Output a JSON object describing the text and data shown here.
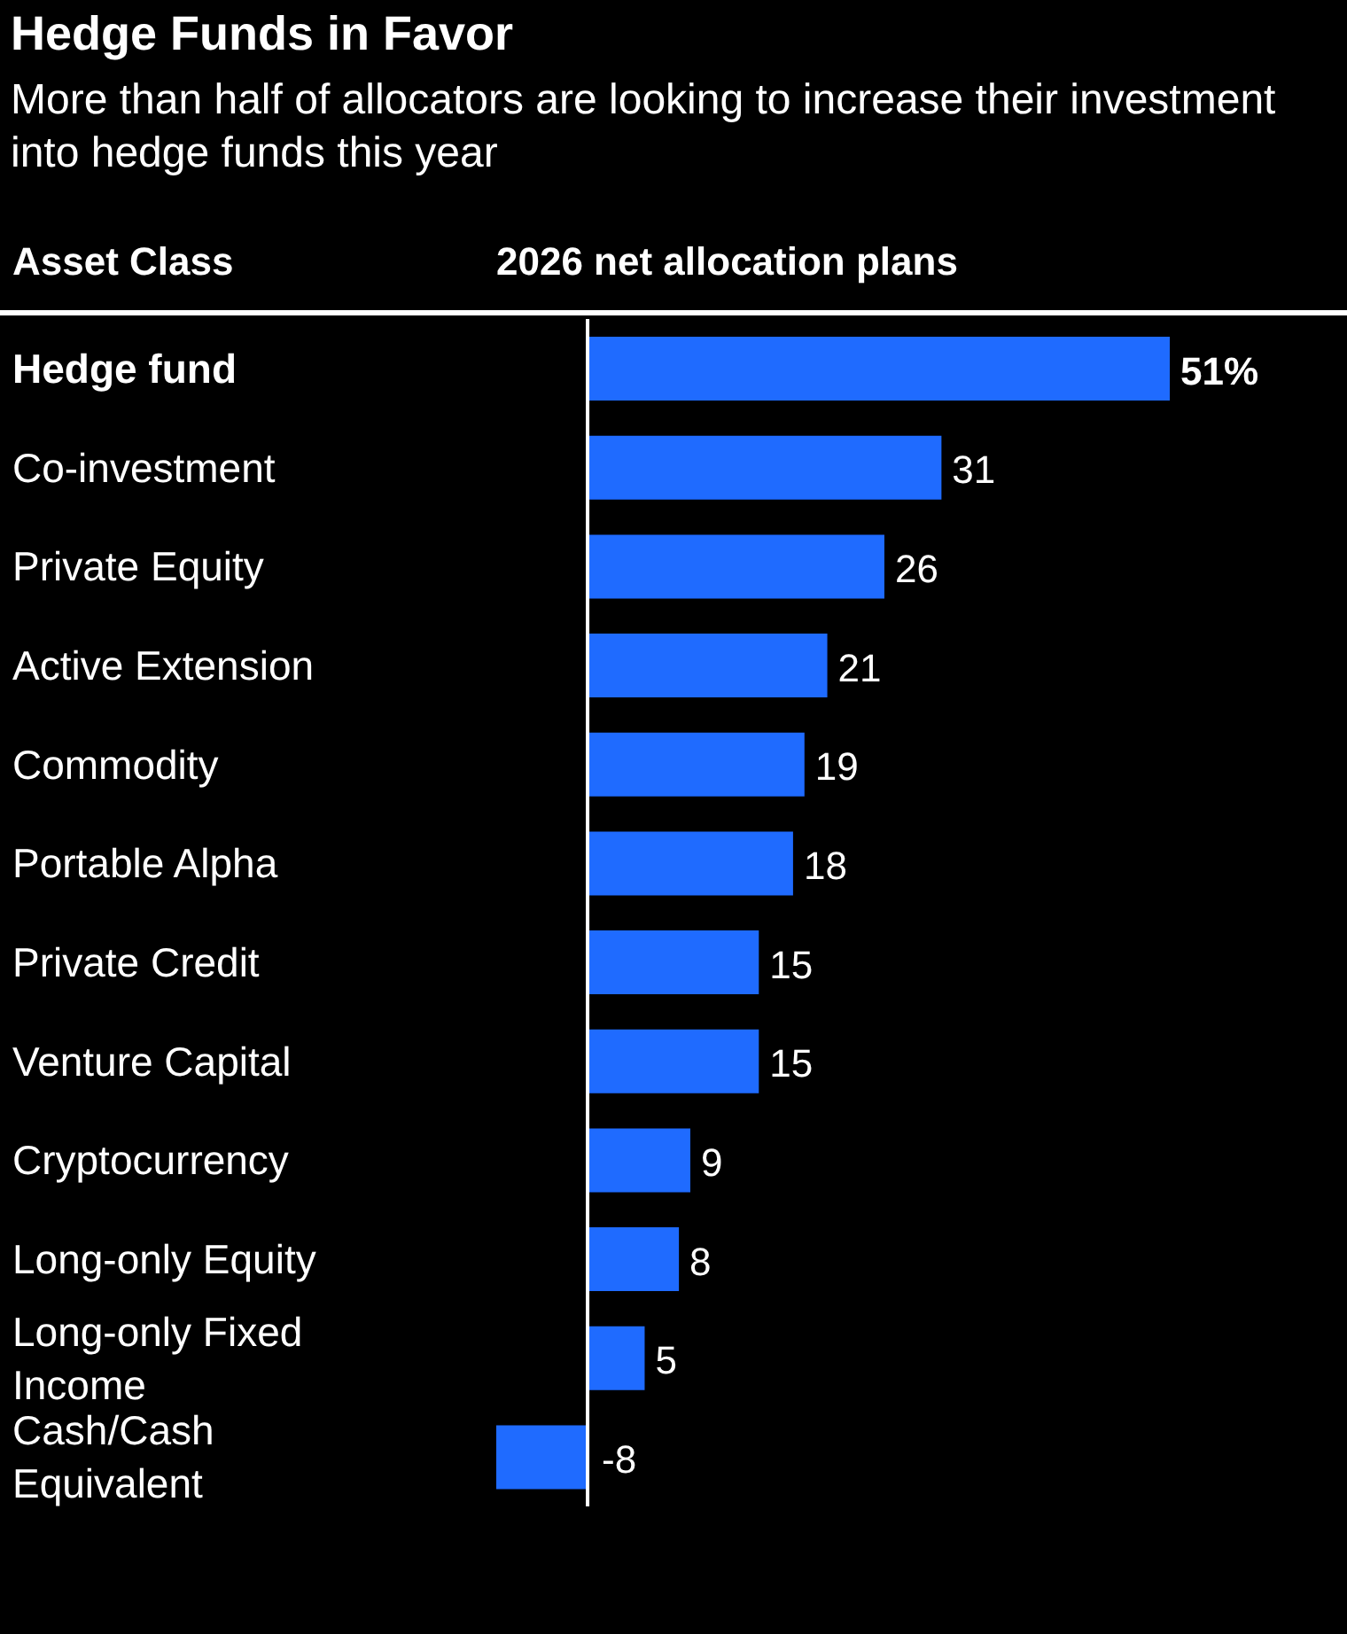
{
  "chart_data": {
    "type": "bar",
    "orientation": "horizontal",
    "title": "Hedge Funds in Favor",
    "subtitle": "More than half of allocators are looking to increase their investment into hedge funds this year",
    "ylabel": "Asset Class",
    "xlabel": "2026 net allocation plans",
    "categories": [
      "Hedge fund",
      "Co-investment",
      "Private Equity",
      "Active Extension",
      "Commodity",
      "Portable Alpha",
      "Private Credit",
      "Venture Capital",
      "Cryptocurrency",
      "Long-only Equity",
      "Long-only Fixed Income",
      "Cash/Cash Equivalent"
    ],
    "values": [
      51,
      31,
      26,
      21,
      19,
      18,
      15,
      15,
      9,
      8,
      5,
      -8
    ],
    "value_labels": [
      "51%",
      "31",
      "26",
      "21",
      "19",
      "18",
      "15",
      "15",
      "9",
      "8",
      "5",
      "-8"
    ],
    "color": "#1f6bff",
    "ref_lines": [
      {
        "axis": "x",
        "value": 0,
        "color": "#ffffff"
      }
    ],
    "grid": false,
    "legend": false
  }
}
